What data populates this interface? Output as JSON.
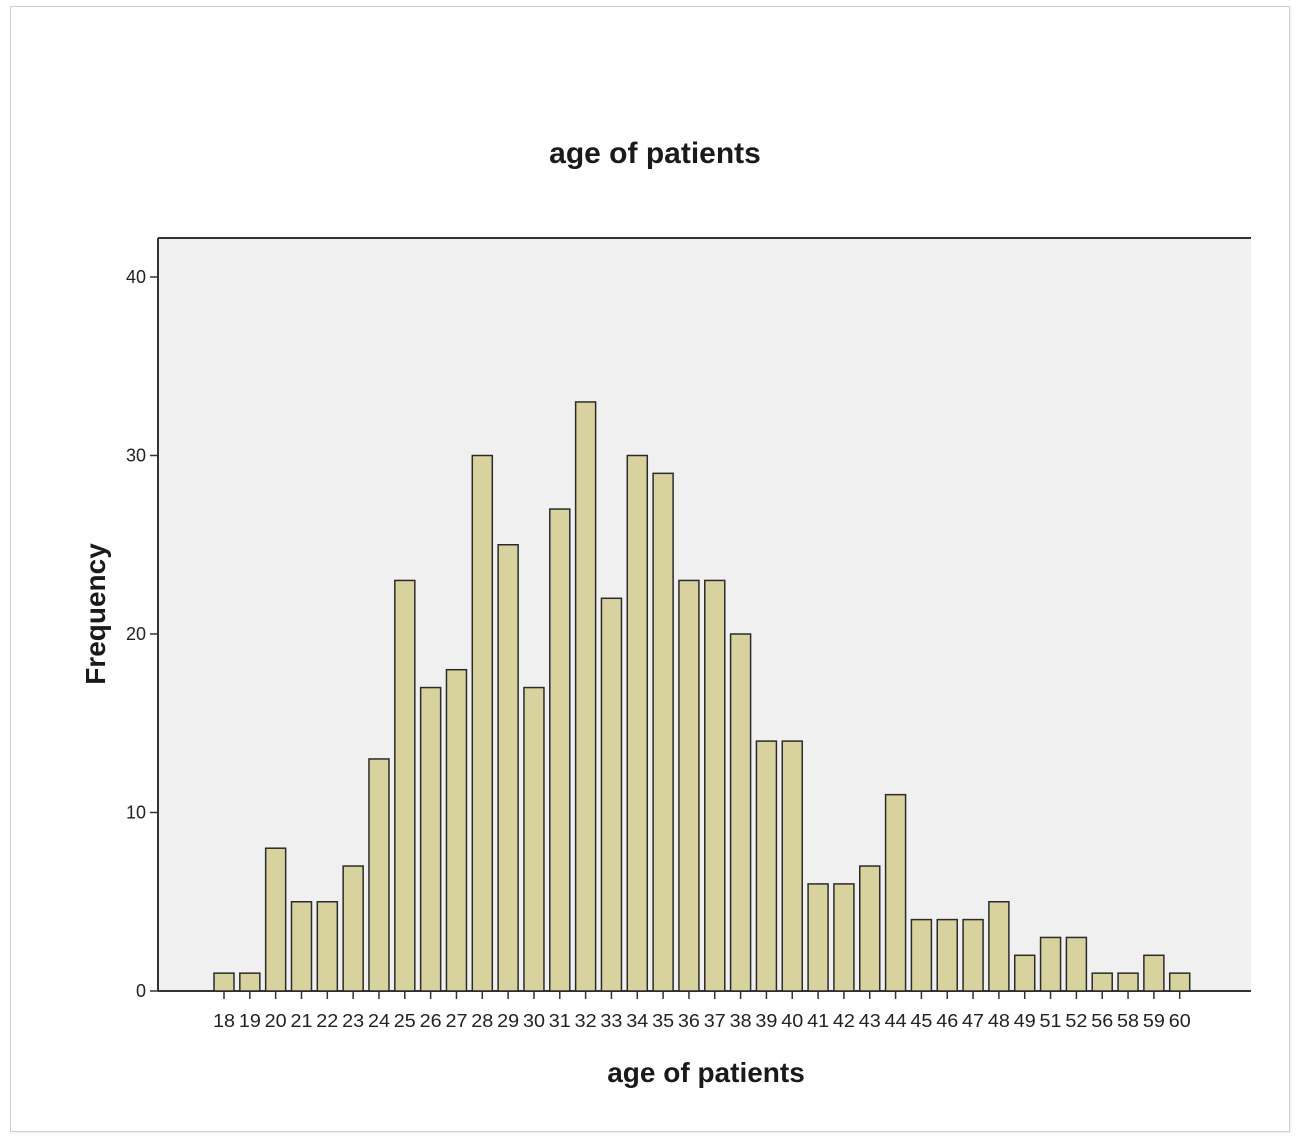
{
  "chart_data": {
    "type": "bar",
    "title": "age of patients",
    "xlabel": "age of patients",
    "ylabel": "Frequency",
    "categories": [
      "18",
      "19",
      "20",
      "21",
      "22",
      "23",
      "24",
      "25",
      "26",
      "27",
      "28",
      "29",
      "30",
      "31",
      "32",
      "33",
      "34",
      "35",
      "36",
      "37",
      "38",
      "39",
      "40",
      "41",
      "42",
      "43",
      "44",
      "45",
      "46",
      "47",
      "48",
      "49",
      "51",
      "52",
      "56",
      "58",
      "59",
      "60"
    ],
    "values": [
      1,
      1,
      8,
      5,
      5,
      7,
      13,
      23,
      17,
      18,
      30,
      25,
      17,
      27,
      33,
      22,
      30,
      29,
      23,
      23,
      20,
      14,
      14,
      6,
      6,
      7,
      11,
      4,
      4,
      4,
      5,
      2,
      3,
      3,
      1,
      1,
      2,
      1
    ],
    "ylim": [
      0,
      42
    ],
    "yticks": [
      0,
      10,
      20,
      30,
      40
    ],
    "grid": false,
    "legend": "none",
    "colors": {
      "bar_fill": "#d8d29e",
      "bar_stroke": "#2b2b2b",
      "plot_background": "#f0f0f0",
      "axis": "#333333"
    }
  }
}
